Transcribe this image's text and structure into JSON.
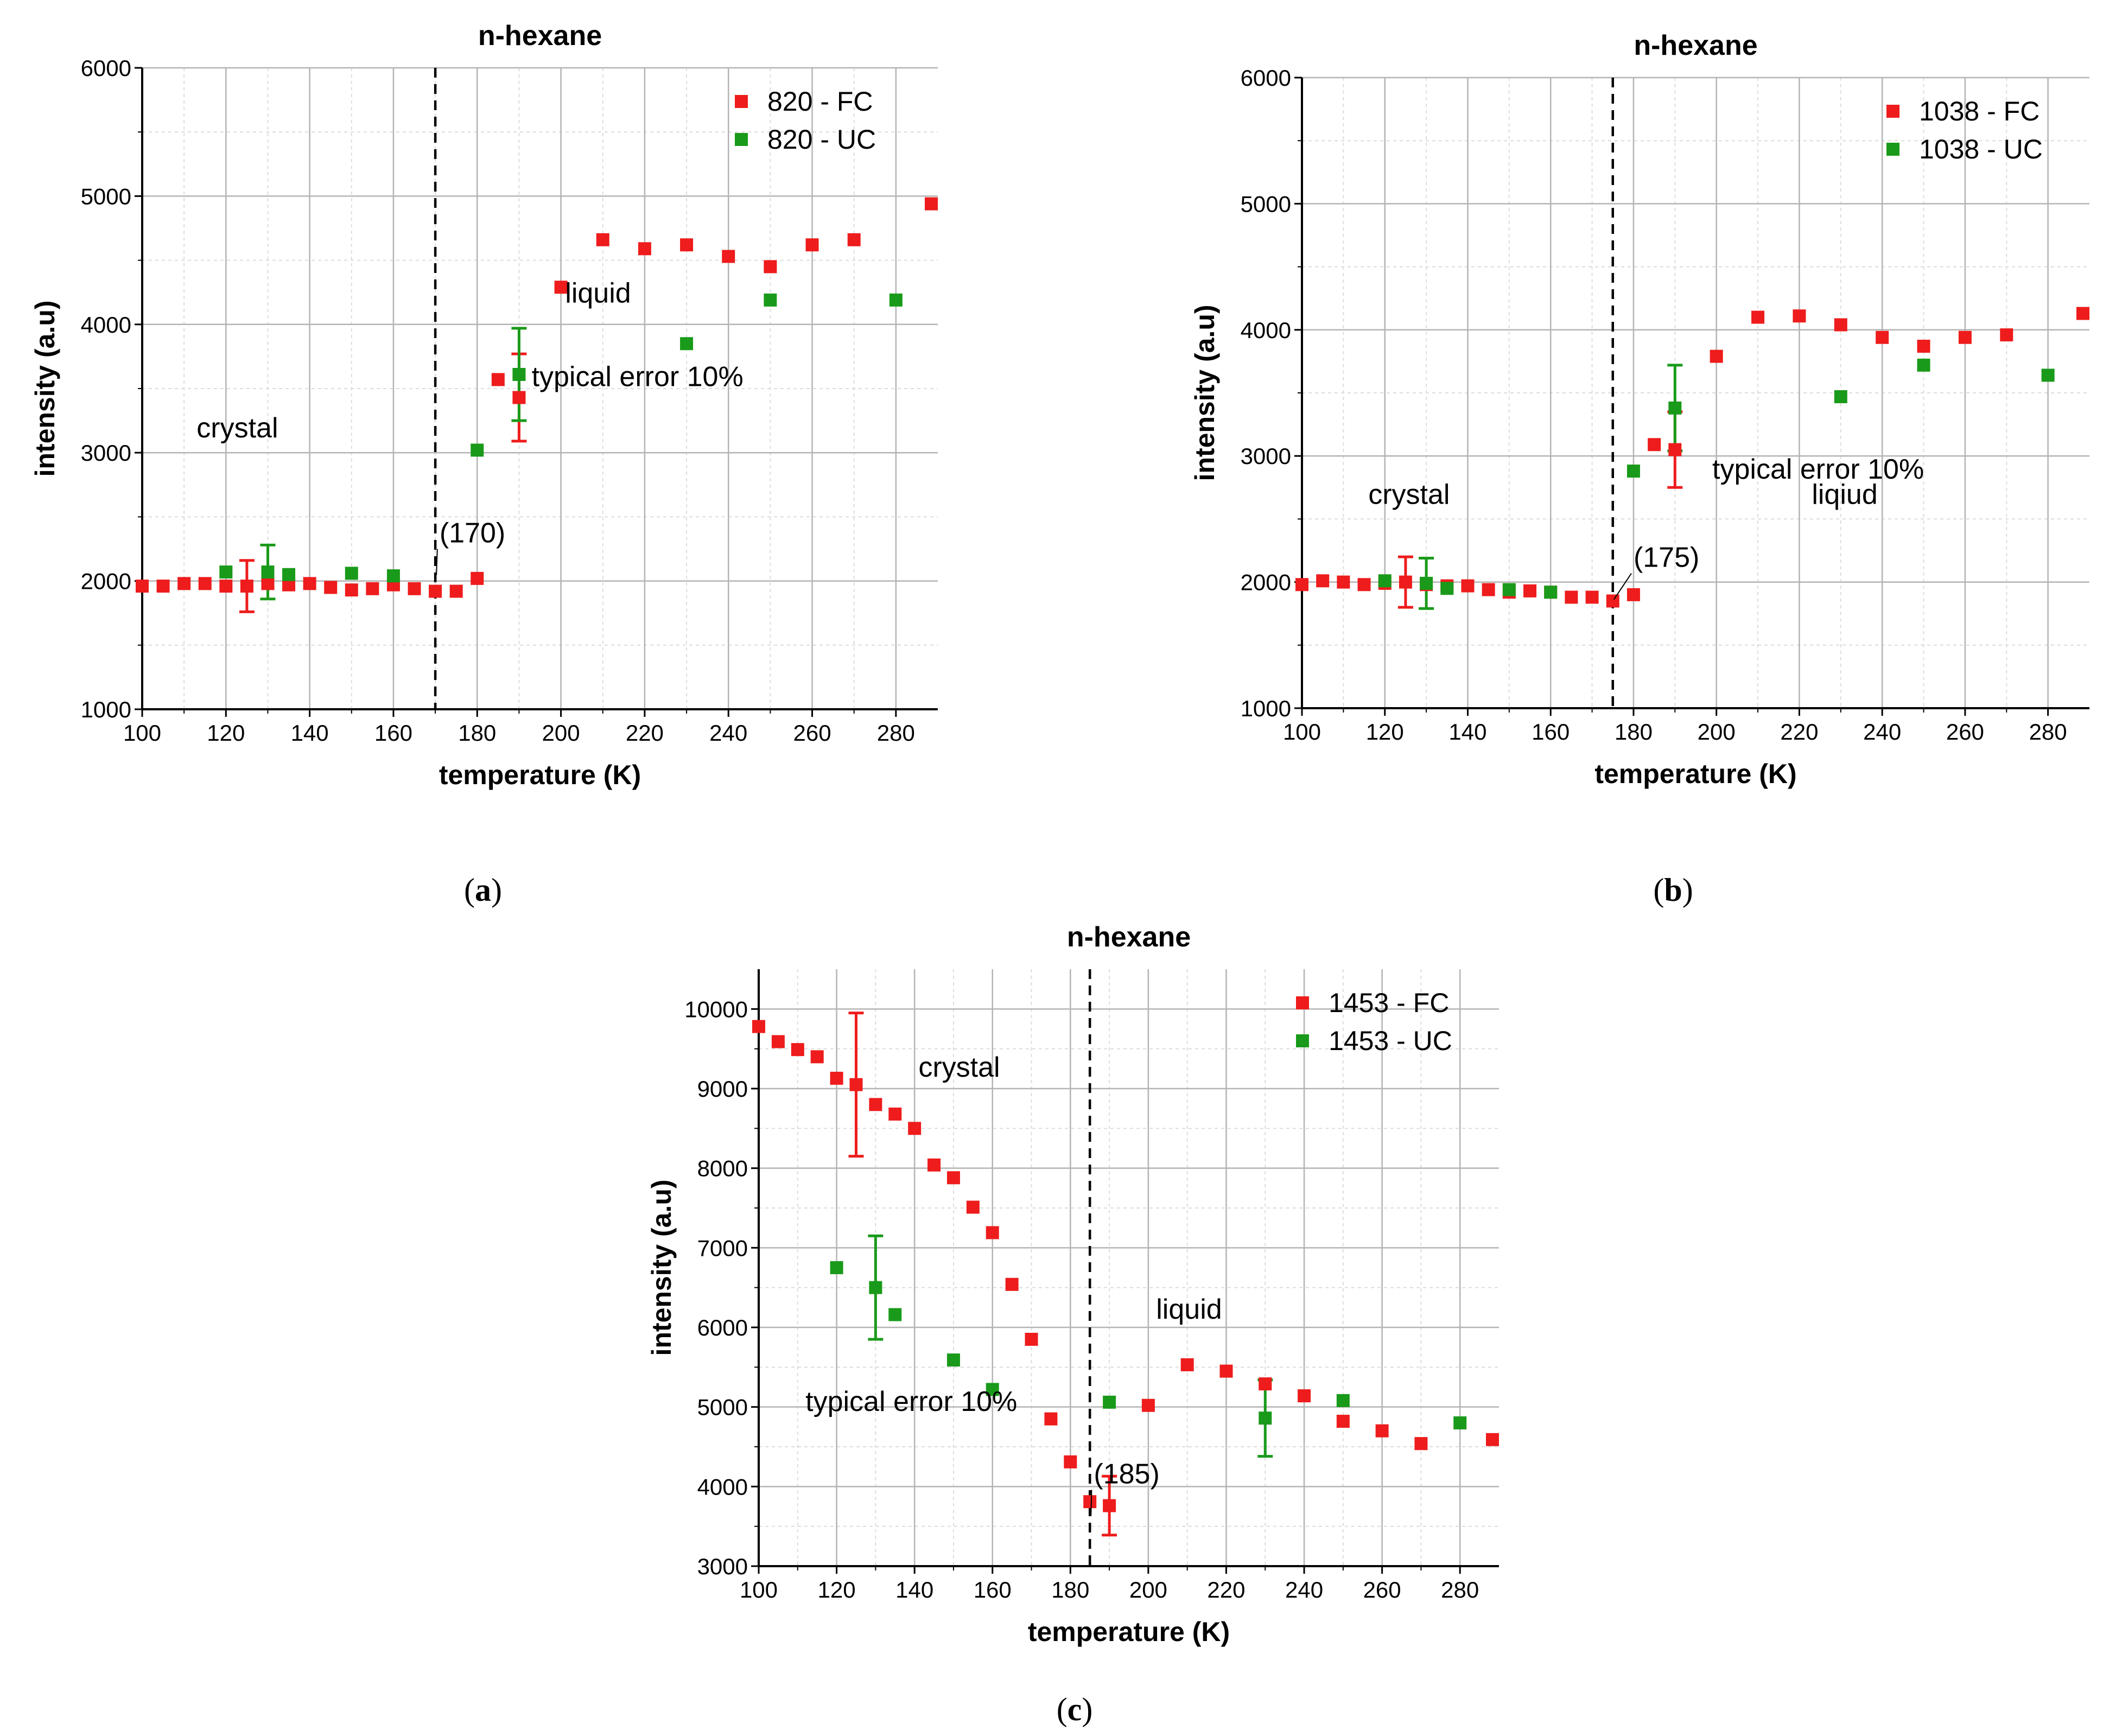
{
  "colors": {
    "fc": "#ee1c1c",
    "uc": "#1a9a1a",
    "grid": "#b4b4b4",
    "minor_grid": "#dcdcdc"
  },
  "chart_data": [
    {
      "type": "scatter",
      "panel": "a",
      "caption_open": "(",
      "caption_letter": "a",
      "caption_close": ")",
      "title": "n-hexane",
      "xlabel": "temperature (K)",
      "ylabel": "intensity (a.u)",
      "xlim": [
        100,
        290
      ],
      "ylim": [
        1000,
        6000
      ],
      "xticks": [
        100,
        120,
        140,
        160,
        180,
        200,
        220,
        240,
        260,
        280
      ],
      "yticks": [
        1000,
        2000,
        3000,
        4000,
        5000,
        6000
      ],
      "transition_temperature": 170,
      "transition_label": "(170)",
      "legend_position": "top-right",
      "series": [
        {
          "name": "820 - FC",
          "color": "#ee1c1c",
          "x": [
            100,
            105,
            110,
            115,
            120,
            125,
            130,
            135,
            140,
            145,
            150,
            155,
            160,
            165,
            170,
            175,
            180,
            185,
            190,
            200,
            210,
            220,
            230,
            240,
            250,
            260,
            270,
            290
          ],
          "y": [
            1960,
            1960,
            1980,
            1980,
            1960,
            1960,
            1980,
            1970,
            1980,
            1950,
            1930,
            1940,
            1970,
            1940,
            1920,
            1920,
            2020,
            3570,
            3430,
            4290,
            4660,
            4590,
            4620,
            4530,
            4450,
            4620,
            4660,
            4940
          ]
        },
        {
          "name": "820 - UC",
          "color": "#1a9a1a",
          "x": [
            120,
            130,
            135,
            150,
            160,
            180,
            190,
            230,
            250,
            280
          ],
          "y": [
            2070,
            2070,
            2050,
            2060,
            2040,
            3020,
            3610,
            3850,
            4190,
            4190
          ]
        }
      ],
      "error_bars": [
        {
          "series": "820 - FC",
          "x": 125,
          "y": 1960,
          "low": 1760,
          "high": 2160
        },
        {
          "series": "820 - UC",
          "x": 130,
          "y": 2070,
          "low": 1860,
          "high": 2280
        },
        {
          "series": "820 - FC",
          "x": 190,
          "y": 3430,
          "low": 3090,
          "high": 3770
        },
        {
          "series": "820 - UC",
          "x": 190,
          "y": 3610,
          "low": 3250,
          "high": 3970
        }
      ],
      "annotations": [
        {
          "text": "crystal",
          "x": 113,
          "y": 3120
        },
        {
          "text": "liquid",
          "x": 201,
          "y": 4170
        },
        {
          "text": "typical error 10%",
          "x": 193,
          "y": 3520
        },
        {
          "text": "(170)",
          "x": 171,
          "y": 2300
        }
      ]
    },
    {
      "type": "scatter",
      "panel": "b",
      "caption_open": "(",
      "caption_letter": "b",
      "caption_close": ")",
      "title": "n-hexane",
      "xlabel": "temperature (K)",
      "ylabel": "intensity (a.u)",
      "xlim": [
        100,
        290
      ],
      "ylim": [
        1000,
        6000
      ],
      "xticks": [
        100,
        120,
        140,
        160,
        180,
        200,
        220,
        240,
        260,
        280
      ],
      "yticks": [
        1000,
        2000,
        3000,
        4000,
        5000,
        6000
      ],
      "transition_temperature": 175,
      "transition_label": "(175)",
      "legend_position": "top-right",
      "series": [
        {
          "name": "1038 - FC",
          "color": "#ee1c1c",
          "x": [
            100,
            105,
            110,
            115,
            120,
            125,
            130,
            135,
            140,
            145,
            150,
            155,
            160,
            165,
            170,
            175,
            180,
            185,
            190,
            200,
            210,
            220,
            230,
            240,
            250,
            260,
            270,
            290
          ],
          "y": [
            1980,
            2010,
            2000,
            1980,
            1990,
            2000,
            1980,
            1970,
            1970,
            1940,
            1920,
            1930,
            1920,
            1880,
            1880,
            1850,
            1900,
            3090,
            3050,
            3790,
            4100,
            4110,
            4040,
            3940,
            3870,
            3940,
            3960,
            4130
          ]
        },
        {
          "name": "1038 - UC",
          "color": "#1a9a1a",
          "x": [
            120,
            130,
            135,
            150,
            160,
            180,
            190,
            230,
            250,
            280
          ],
          "y": [
            2010,
            1990,
            1950,
            1940,
            1920,
            2880,
            3380,
            3470,
            3720,
            3640
          ]
        }
      ],
      "error_bars": [
        {
          "series": "1038 - FC",
          "x": 125,
          "y": 2000,
          "low": 1800,
          "high": 2200
        },
        {
          "series": "1038 - UC",
          "x": 130,
          "y": 1990,
          "low": 1790,
          "high": 2190
        },
        {
          "series": "1038 - FC",
          "x": 190,
          "y": 3050,
          "low": 2750,
          "high": 3350
        },
        {
          "series": "1038 - UC",
          "x": 190,
          "y": 3380,
          "low": 3040,
          "high": 3720
        }
      ],
      "annotations": [
        {
          "text": "crystal",
          "x": 116,
          "y": 2620
        },
        {
          "text": "liqiud",
          "x": 223,
          "y": 2620
        },
        {
          "text": "typical error 10%",
          "x": 199,
          "y": 2820
        },
        {
          "text": "(175)",
          "x": 180,
          "y": 2120
        }
      ]
    },
    {
      "type": "scatter",
      "panel": "c",
      "caption_open": "(",
      "caption_letter": "c",
      "caption_close": ")",
      "title": "n-hexane",
      "xlabel": "temperature (K)",
      "ylabel": "intensity (a.u)",
      "xlim": [
        100,
        290
      ],
      "ylim": [
        3000,
        10500
      ],
      "xticks": [
        100,
        120,
        140,
        160,
        180,
        200,
        220,
        240,
        260,
        280
      ],
      "yticks": [
        3000,
        4000,
        5000,
        6000,
        7000,
        8000,
        9000,
        10000
      ],
      "transition_temperature": 185,
      "transition_label": "(185)",
      "legend_position": "top-right",
      "series": [
        {
          "name": "1453 - FC",
          "color": "#ee1c1c",
          "x": [
            100,
            105,
            110,
            115,
            120,
            125,
            130,
            135,
            140,
            145,
            150,
            155,
            160,
            165,
            170,
            175,
            180,
            185,
            190,
            200,
            210,
            220,
            230,
            240,
            250,
            260,
            270,
            290
          ],
          "y": [
            9780,
            9590,
            9490,
            9400,
            9130,
            9050,
            8800,
            8680,
            8500,
            8040,
            7880,
            7510,
            7190,
            6540,
            5850,
            4850,
            4310,
            3810,
            3760,
            5020,
            5530,
            5450,
            5290,
            5140,
            4820,
            4700,
            4540,
            4590
          ]
        },
        {
          "name": "1453 - UC",
          "color": "#1a9a1a",
          "x": [
            120,
            130,
            135,
            150,
            160,
            190,
            230,
            250,
            280
          ],
          "y": [
            6750,
            6500,
            6160,
            5590,
            5220,
            5060,
            4860,
            5080,
            4800
          ]
        }
      ],
      "error_bars": [
        {
          "series": "1453 - FC",
          "x": 125,
          "y": 9050,
          "low": 8150,
          "high": 9950
        },
        {
          "series": "1453 - UC",
          "x": 130,
          "y": 6500,
          "low": 5850,
          "high": 7150
        },
        {
          "series": "1453 - FC",
          "x": 190,
          "y": 3760,
          "low": 3390,
          "high": 4130
        },
        {
          "series": "1453 - UC",
          "x": 230,
          "y": 4860,
          "low": 4380,
          "high": 5340
        }
      ],
      "annotations": [
        {
          "text": "crystal",
          "x": 141,
          "y": 9150
        },
        {
          "text": "liquid",
          "x": 202,
          "y": 6110
        },
        {
          "text": "typical error 10%",
          "x": 112,
          "y": 4950
        },
        {
          "text": "(185)",
          "x": 186,
          "y": 4040
        }
      ]
    }
  ]
}
